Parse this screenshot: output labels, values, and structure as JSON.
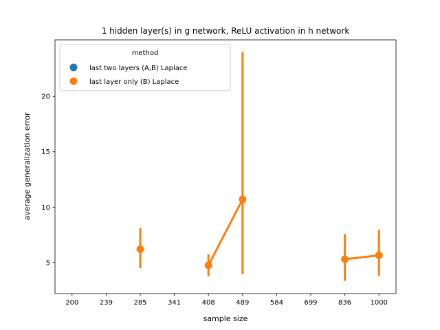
{
  "chart_data": {
    "type": "line",
    "title": "1 hidden layer(s) in g network, ReLU activation in h network",
    "xlabel": "sample size",
    "ylabel": "average generalization error",
    "categories": [
      "200",
      "239",
      "285",
      "341",
      "408",
      "489",
      "584",
      "699",
      "836",
      "1000"
    ],
    "y_ticks": [
      5,
      10,
      15,
      20
    ],
    "y_tick_labels": [
      "5",
      "10",
      "15",
      "20"
    ],
    "ylim": [
      2.2,
      25.1
    ],
    "grid": false,
    "legend": {
      "title": "method",
      "placement": "top-left",
      "entries": [
        "last two layers (A,B) Laplace",
        "last layer only (B) Laplace"
      ]
    },
    "series": [
      {
        "name": "last two layers (A,B) Laplace",
        "color": "#1f77b4",
        "values": [
          null,
          null,
          null,
          null,
          null,
          null,
          null,
          null,
          null,
          null
        ],
        "ci_low": [
          null,
          null,
          null,
          null,
          null,
          null,
          null,
          null,
          null,
          null
        ],
        "ci_high": [
          null,
          null,
          null,
          null,
          null,
          null,
          null,
          null,
          null,
          null
        ]
      },
      {
        "name": "last layer only (B) Laplace",
        "color": "#ff7f0e",
        "values": [
          null,
          null,
          6.2,
          null,
          4.75,
          10.7,
          null,
          null,
          5.3,
          5.65
        ],
        "ci_low": [
          null,
          null,
          4.5,
          null,
          3.75,
          3.95,
          null,
          null,
          3.35,
          3.8
        ],
        "ci_high": [
          null,
          null,
          8.1,
          null,
          5.75,
          24.0,
          null,
          null,
          7.55,
          7.95
        ]
      }
    ]
  }
}
